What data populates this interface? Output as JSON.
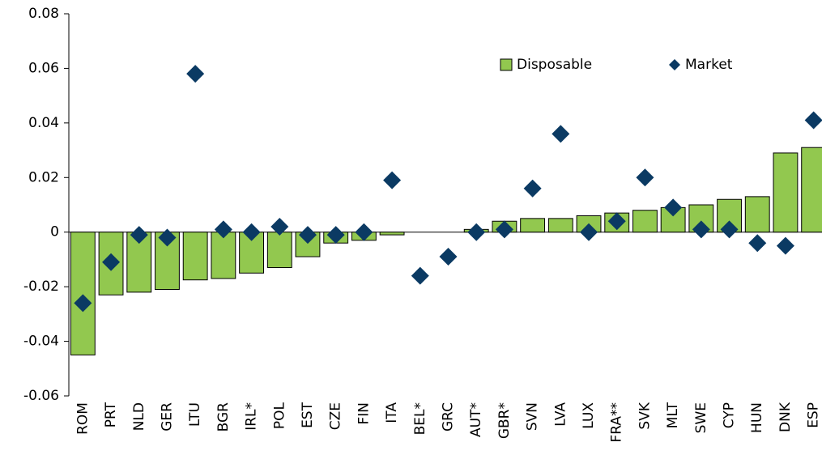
{
  "chart_data": {
    "type": "bar",
    "categories": [
      "ROM",
      "PRT",
      "NLD",
      "GER",
      "LTU",
      "BGR",
      "IRL*",
      "POL",
      "EST",
      "CZE",
      "FIN",
      "ITA",
      "BEL*",
      "GRC",
      "AUT*",
      "GBR*",
      "SVN",
      "LVA",
      "LUX",
      "FRA**",
      "SVK",
      "MLT",
      "SWE",
      "CYP",
      "HUN",
      "DNK",
      "ESP"
    ],
    "series": [
      {
        "name": "Disposable",
        "type": "bar",
        "color": "#92c84f",
        "values": [
          -0.045,
          -0.023,
          -0.022,
          -0.021,
          -0.0175,
          -0.017,
          -0.015,
          -0.013,
          -0.009,
          -0.004,
          -0.003,
          -0.001,
          null,
          null,
          0.001,
          0.004,
          0.005,
          0.005,
          0.006,
          0.007,
          0.008,
          0.009,
          0.01,
          0.012,
          0.013,
          0.029,
          0.031
        ]
      },
      {
        "name": "Market",
        "type": "scatter",
        "color": "#0b3a63",
        "values": [
          -0.026,
          -0.011,
          -0.001,
          -0.002,
          0.058,
          0.001,
          0,
          0.002,
          -0.001,
          -0.001,
          0,
          0.019,
          -0.016,
          -0.009,
          0,
          0.001,
          0.016,
          0.036,
          0,
          0.004,
          0.02,
          0.009,
          0.001,
          0.001,
          -0.004,
          -0.005,
          0.041
        ]
      }
    ],
    "ylim": [
      -0.06,
      0.08
    ],
    "yticks": [
      -0.06,
      -0.04,
      -0.02,
      0,
      0.02,
      0.04,
      0.06,
      0.08
    ]
  }
}
